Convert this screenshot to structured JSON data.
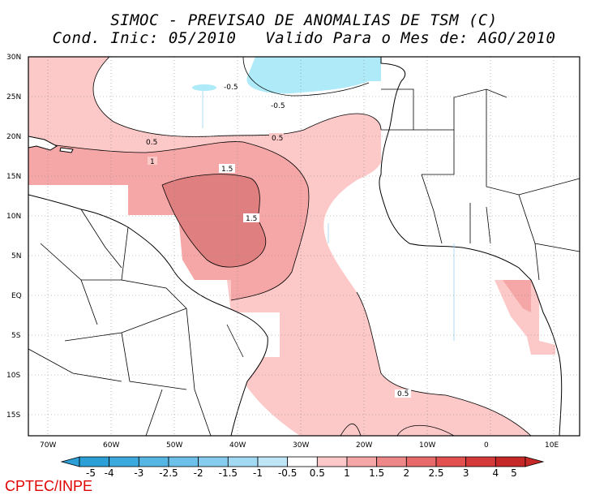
{
  "title": {
    "line1": "SIMOC - PREVISAO DE ANOMALIAS DE TSM (C)",
    "line2": "Cond. Inic: 05/2010   Valido Para o Mes de: AGO/2010"
  },
  "map": {
    "lon_range": [
      -72,
      15
    ],
    "lat_range": [
      -18,
      30
    ],
    "lat_labels": [
      "30N",
      "25N",
      "20N",
      "15N",
      "10N",
      "5N",
      "EQ",
      "5S",
      "10S",
      "15S"
    ],
    "lon_labels": [
      "70W",
      "60W",
      "50W",
      "40W",
      "30W",
      "20W",
      "10W",
      "0",
      "10E"
    ],
    "contour_labels": [
      "-0.5",
      "-0.5",
      "0.5",
      "0.5",
      "1",
      "1.5",
      "1.5",
      "0.5"
    ]
  },
  "colorbar": {
    "labels": [
      "-5",
      "-4",
      "-3",
      "-2.5",
      "-2",
      "-1.5",
      "-1",
      "-0.5",
      "0.5",
      "1",
      "1.5",
      "2",
      "2.5",
      "3",
      "4",
      "5"
    ],
    "colors": [
      "#2c9fd6",
      "#3ba9de",
      "#55b6e4",
      "#6cc0ea",
      "#86ccef",
      "#a2d9f3",
      "#bee6f7",
      "#ffffff",
      "#fcc8c8",
      "#f5a6a6",
      "#ee8888",
      "#e86a6a",
      "#e25050",
      "#d43a3a",
      "#c62828"
    ]
  },
  "credit": "CPTEC/INPE"
}
